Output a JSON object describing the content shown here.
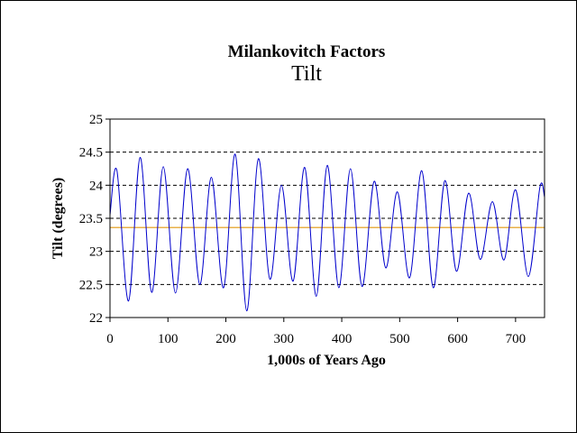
{
  "chart_data": {
    "type": "line",
    "title": "Milankovitch Factors",
    "subtitle": "Tilt",
    "xlabel": "1,000s of Years Ago",
    "ylabel": "Tilt (degrees)",
    "xlim": [
      0,
      750
    ],
    "ylim": [
      22,
      25
    ],
    "xticks": [
      0,
      100,
      200,
      300,
      400,
      500,
      600,
      700
    ],
    "yticks": [
      22,
      22.5,
      23,
      23.5,
      24,
      24.5,
      25
    ],
    "ytick_labels": [
      "22",
      "22.5",
      "23",
      "23.5",
      "24",
      "24.5",
      "25"
    ],
    "grid": "dashed horizontal",
    "mean_line": {
      "value": 23.36,
      "color": "#e8b04a"
    },
    "series": [
      {
        "color": "#0000cc",
        "x": [
          0,
          12,
          32,
          52,
          72,
          92,
          113,
          134,
          155,
          175,
          196,
          216,
          236,
          256,
          276,
          296,
          316,
          336,
          356,
          375,
          395,
          415,
          435,
          456,
          476,
          496,
          517,
          538,
          558,
          578,
          598,
          619,
          639,
          660,
          680,
          700,
          722,
          742,
          750
        ],
        "y": [
          23.55,
          24.22,
          22.25,
          24.42,
          22.38,
          24.28,
          22.37,
          24.25,
          22.5,
          24.12,
          22.45,
          24.47,
          22.1,
          24.4,
          22.58,
          24.0,
          22.55,
          24.27,
          22.32,
          24.3,
          22.45,
          24.25,
          22.47,
          24.06,
          22.75,
          23.9,
          22.6,
          24.22,
          22.45,
          24.07,
          22.7,
          23.88,
          22.88,
          23.75,
          22.87,
          23.93,
          22.62,
          23.97,
          23.82
        ]
      }
    ]
  }
}
